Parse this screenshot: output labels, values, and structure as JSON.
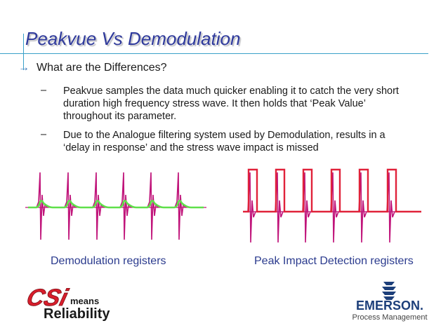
{
  "slide": {
    "title": "Peakvue Vs Demodulation",
    "bullet_arrow": "→",
    "main_bullet": "What are the Differences?",
    "sub_dash": "–",
    "sub_bullets": [
      "Peakvue samples the data much quicker enabling it to catch the very short duration high frequency stress wave. It then holds that ‘Peak Value’ throughout its parameter.",
      "Due to the Analogue filtering system used by Demodulation, results in a ‘delay in response’ and the stress wave impact is missed"
    ],
    "captions": {
      "left": "Demodulation registers",
      "right": "Peak Impact Detection registers"
    }
  },
  "logos": {
    "csi_text": "CSi",
    "csi_means": "means",
    "csi_reliability": "Reliability",
    "emerson_name": "EMERSON.",
    "emerson_sub": "Process Management"
  },
  "colors": {
    "title": "#2f3a9c",
    "signal_magenta": "#c0147a",
    "envelope_green": "#5fe04a",
    "peak_red": "#e0223a",
    "caption": "#2b3b8e",
    "emerson_blue": "#1d3f7a"
  }
}
